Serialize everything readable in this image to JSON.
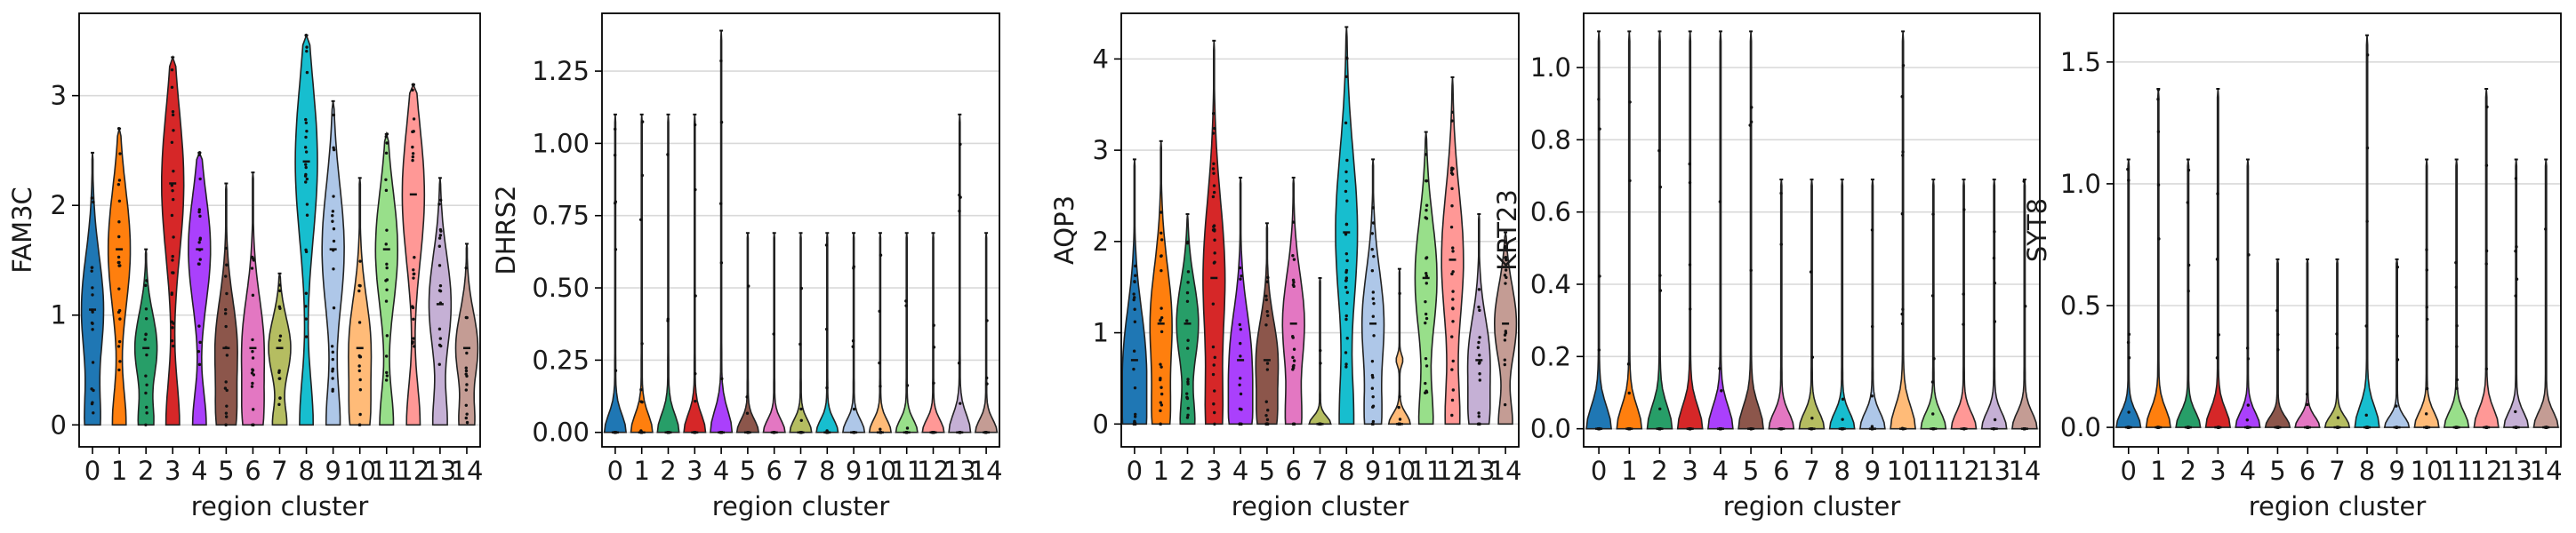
{
  "chart_data": [
    {
      "type": "violin",
      "ylabel": "FAM3C",
      "xlabel": "region cluster",
      "ylim": [
        -0.2,
        3.75
      ],
      "yticks": [
        0,
        1,
        2,
        3
      ],
      "grid": true,
      "categories": [
        "0",
        "1",
        "2",
        "3",
        "4",
        "5",
        "6",
        "7",
        "8",
        "9",
        "10",
        "11",
        "12",
        "13",
        "14"
      ],
      "max_values": [
        2.48,
        2.7,
        1.6,
        3.35,
        2.48,
        2.2,
        2.3,
        1.38,
        3.55,
        2.95,
        2.25,
        2.65,
        3.1,
        2.25,
        1.65
      ],
      "median_values": [
        1.05,
        1.6,
        0.7,
        2.2,
        1.6,
        0.7,
        0.7,
        0.7,
        2.4,
        1.6,
        0.7,
        1.6,
        2.1,
        1.1,
        0.7
      ]
    },
    {
      "type": "violin",
      "ylabel": "DHRS2",
      "xlabel": "region cluster",
      "ylim": [
        -0.05,
        1.45
      ],
      "yticks": [
        0.0,
        0.25,
        0.5,
        0.75,
        1.0,
        1.25
      ],
      "grid": true,
      "categories": [
        "0",
        "1",
        "2",
        "3",
        "4",
        "5",
        "6",
        "7",
        "8",
        "9",
        "10",
        "11",
        "12",
        "13",
        "14"
      ],
      "max_values": [
        1.1,
        1.1,
        1.1,
        1.1,
        1.39,
        0.69,
        0.69,
        0.69,
        0.69,
        0.69,
        0.69,
        0.69,
        0.69,
        1.1,
        0.69
      ],
      "median_values": [
        0,
        0,
        0,
        0,
        0,
        0,
        0,
        0,
        0,
        0,
        0,
        0,
        0,
        0,
        0
      ]
    },
    {
      "type": "violin",
      "ylabel": "AQP3",
      "xlabel": "region cluster",
      "ylim": [
        -0.25,
        4.5
      ],
      "yticks": [
        0,
        1,
        2,
        3,
        4
      ],
      "grid": true,
      "categories": [
        "0",
        "1",
        "2",
        "3",
        "4",
        "5",
        "6",
        "7",
        "8",
        "9",
        "10",
        "11",
        "12",
        "13",
        "14"
      ],
      "max_values": [
        2.9,
        3.1,
        2.3,
        4.2,
        2.7,
        2.2,
        2.7,
        1.6,
        4.35,
        2.9,
        1.7,
        3.2,
        3.8,
        2.3,
        2.1
      ],
      "median_values": [
        0.7,
        1.1,
        1.1,
        1.6,
        0.7,
        0.7,
        1.1,
        0.0,
        2.1,
        1.1,
        0.0,
        1.6,
        1.8,
        0.7,
        1.1
      ]
    },
    {
      "type": "violin",
      "ylabel": "KRT23",
      "xlabel": "region cluster",
      "ylim": [
        -0.05,
        1.15
      ],
      "yticks": [
        0.0,
        0.2,
        0.4,
        0.6,
        0.8,
        1.0
      ],
      "grid": true,
      "categories": [
        "0",
        "1",
        "2",
        "3",
        "4",
        "5",
        "6",
        "7",
        "8",
        "9",
        "10",
        "11",
        "12",
        "13",
        "14"
      ],
      "max_values": [
        1.1,
        1.1,
        1.1,
        1.1,
        1.1,
        1.1,
        0.69,
        0.69,
        0.69,
        0.69,
        1.1,
        0.69,
        0.69,
        0.69,
        0.69
      ],
      "median_values": [
        0,
        0,
        0,
        0,
        0,
        0,
        0,
        0,
        0,
        0,
        0,
        0,
        0,
        0,
        0
      ]
    },
    {
      "type": "violin",
      "ylabel": "SYT8",
      "xlabel": "region cluster",
      "ylim": [
        -0.08,
        1.7
      ],
      "yticks": [
        0.0,
        0.5,
        1.0,
        1.5
      ],
      "grid": true,
      "categories": [
        "0",
        "1",
        "2",
        "3",
        "4",
        "5",
        "6",
        "7",
        "8",
        "9",
        "10",
        "11",
        "12",
        "13",
        "14"
      ],
      "max_values": [
        1.1,
        1.39,
        1.1,
        1.39,
        1.1,
        0.69,
        0.69,
        0.69,
        1.61,
        0.69,
        1.1,
        1.1,
        1.39,
        1.1,
        1.1
      ],
      "median_values": [
        0,
        0,
        0,
        0,
        0,
        0,
        0,
        0,
        0,
        0,
        0,
        0,
        0,
        0,
        0
      ]
    }
  ],
  "colors": {
    "palette": [
      "#1f77b4",
      "#ff7f0e",
      "#279e68",
      "#d62728",
      "#aa40fc",
      "#8c564b",
      "#e377c2",
      "#b5bd61",
      "#17becf",
      "#aec7e8",
      "#ffbb78",
      "#98df8a",
      "#ff9896",
      "#c5b0d5",
      "#c49c94"
    ],
    "grid": "#d9d9d9",
    "outline": "#222222"
  }
}
